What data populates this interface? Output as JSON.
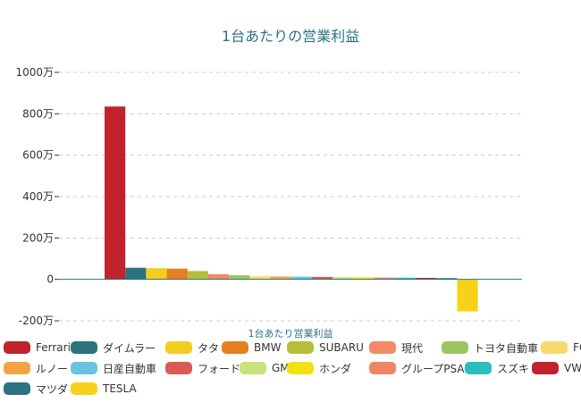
{
  "chart_data": {
    "type": "bar",
    "title": "1台あたりの営業利益",
    "xlabel": "1台あたり営業利益",
    "ylabel": "",
    "ylim": [
      -2000000,
      10000000
    ],
    "yticks": [
      {
        "value": -2000000,
        "label": "-200万"
      },
      {
        "value": 0,
        "label": "0"
      },
      {
        "value": 2000000,
        "label": "200万"
      },
      {
        "value": 4000000,
        "label": "400万"
      },
      {
        "value": 6000000,
        "label": "600万"
      },
      {
        "value": 8000000,
        "label": "800万"
      },
      {
        "value": 10000000,
        "label": "1000万"
      }
    ],
    "grid": true,
    "legend_position": "bottom",
    "series": [
      {
        "name": "Ferrari",
        "value": 8350000,
        "color": "#c0232c"
      },
      {
        "name": "ダイムラー",
        "value": 560000,
        "color": "#2b737f"
      },
      {
        "name": "タタ",
        "value": 540000,
        "color": "#f5cd1e"
      },
      {
        "name": "BMW",
        "value": 520000,
        "color": "#e67e22"
      },
      {
        "name": "SUBARU",
        "value": 400000,
        "color": "#b5be39"
      },
      {
        "name": "現代",
        "value": 250000,
        "color": "#f28a67"
      },
      {
        "name": "トヨタ自動車",
        "value": 200000,
        "color": "#9cc660"
      },
      {
        "name": "FCA",
        "value": 150000,
        "color": "#f8d96c"
      },
      {
        "name": "ルノー",
        "value": 140000,
        "color": "#f2a444"
      },
      {
        "name": "日産自動車",
        "value": 130000,
        "color": "#68c3e3"
      },
      {
        "name": "フォード",
        "value": 120000,
        "color": "#d95a55"
      },
      {
        "name": "GM",
        "value": 110000,
        "color": "#c6e27a"
      },
      {
        "name": "ホンダ",
        "value": 100000,
        "color": "#f2e10e"
      },
      {
        "name": "グループPSA",
        "value": 90000,
        "color": "#f08566"
      },
      {
        "name": "スズキ",
        "value": 80000,
        "color": "#2cbdbd"
      },
      {
        "name": "VW",
        "value": 70000,
        "color": "#c0232c"
      },
      {
        "name": "マツダ",
        "value": 60000,
        "color": "#2b737f"
      },
      {
        "name": "TESLA",
        "value": -1550000,
        "color": "#f8d21a"
      }
    ]
  }
}
